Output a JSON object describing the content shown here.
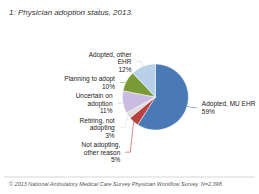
{
  "chart_data": {
    "type": "pie",
    "title": "1: Physician adoption status, 2013.",
    "footnote": "© 2013 National Ambulatory Medical Care Survey Physician Workflow Survey. N=2,398.",
    "categories": [
      "Adopted, MU EHR",
      "Not adopting,\nother reason",
      "Retiring, not\nadopting",
      "Uncertain on\nadoption",
      "Planning to adopt",
      "Adopted, other\nEHR"
    ],
    "values": [
      59,
      5,
      3,
      11,
      10,
      12
    ],
    "value_labels": [
      "59%",
      "5%",
      "3%",
      "11%",
      "10%",
      "12%"
    ],
    "colors": [
      "#4A7AB5",
      "#B94040",
      "#DCDCDC",
      "#C9BCE0",
      "#7A9A35",
      "#B8D0E8"
    ],
    "data_labels": true
  }
}
